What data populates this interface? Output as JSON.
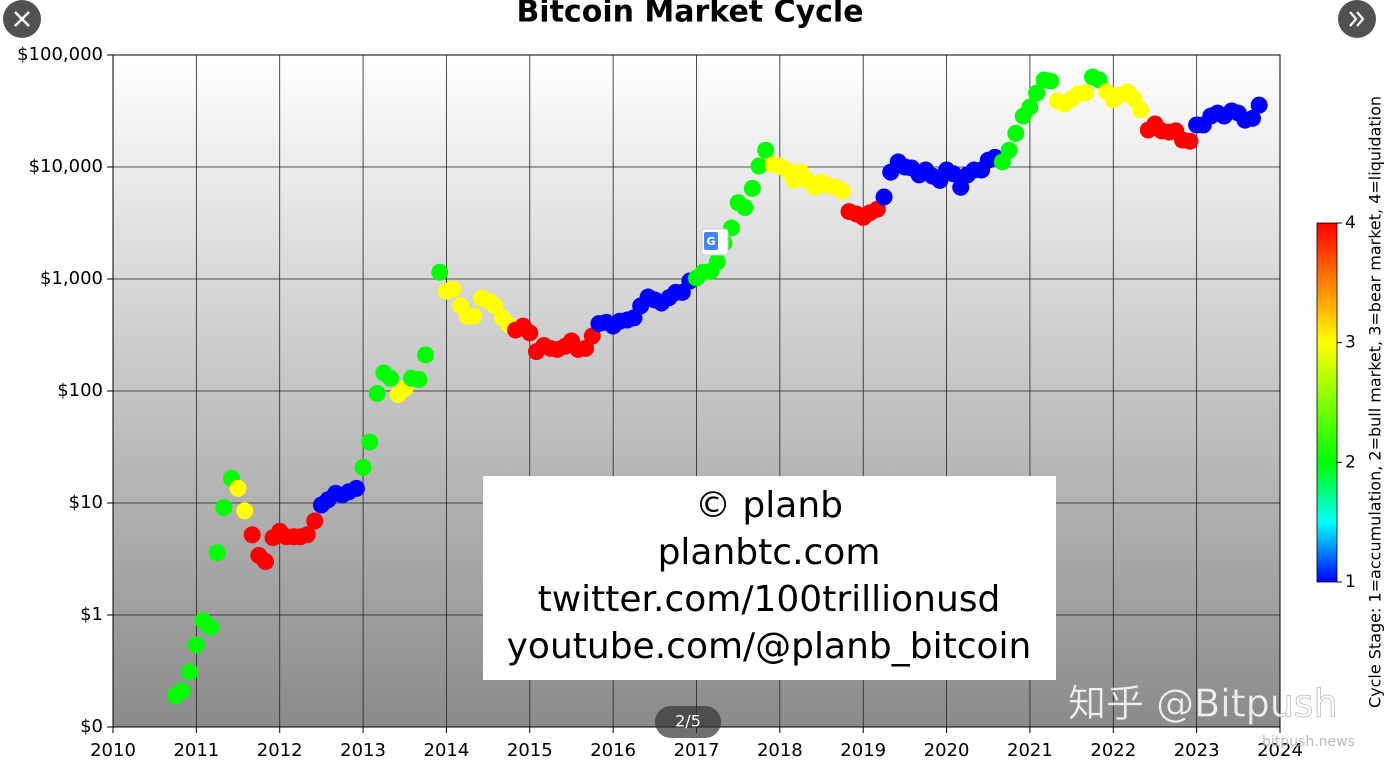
{
  "chart_data": {
    "type": "scatter",
    "title": "Bitcoin Market Cycle",
    "x": [
      2010.75,
      2010.83,
      2010.92,
      2011.0,
      2011.08,
      2011.17,
      2011.25,
      2011.33,
      2011.42,
      2011.5,
      2011.58,
      2011.67,
      2011.75,
      2011.83,
      2011.92,
      2012.0,
      2012.08,
      2012.17,
      2012.25,
      2012.33,
      2012.42,
      2012.5,
      2012.58,
      2012.67,
      2012.75,
      2012.83,
      2012.92,
      2013.0,
      2013.08,
      2013.17,
      2013.25,
      2013.33,
      2013.42,
      2013.5,
      2013.58,
      2013.67,
      2013.75,
      2013.92,
      2014.0,
      2014.08,
      2014.17,
      2014.25,
      2014.33,
      2014.42,
      2014.5,
      2014.58,
      2014.67,
      2014.75,
      2014.83,
      2014.92,
      2015.0,
      2015.08,
      2015.17,
      2015.25,
      2015.33,
      2015.42,
      2015.5,
      2015.58,
      2015.67,
      2015.75,
      2015.83,
      2015.92,
      2016.0,
      2016.08,
      2016.17,
      2016.25,
      2016.33,
      2016.42,
      2016.5,
      2016.58,
      2016.67,
      2016.75,
      2016.83,
      2016.92,
      2017.0,
      2017.08,
      2017.17,
      2017.25,
      2017.33,
      2017.42,
      2017.5,
      2017.58,
      2017.67,
      2017.75,
      2017.83,
      2017.92,
      2018.0,
      2018.08,
      2018.17,
      2018.25,
      2018.33,
      2018.42,
      2018.5,
      2018.58,
      2018.67,
      2018.75,
      2018.83,
      2018.92,
      2019.0,
      2019.08,
      2019.17,
      2019.25,
      2019.33,
      2019.42,
      2019.5,
      2019.58,
      2019.67,
      2019.75,
      2019.83,
      2019.92,
      2020.0,
      2020.08,
      2020.17,
      2020.25,
      2020.33,
      2020.42,
      2020.5,
      2020.58,
      2020.67,
      2020.75,
      2020.83,
      2020.92,
      2021.0,
      2021.08,
      2021.17,
      2021.25,
      2021.33,
      2021.42,
      2021.5,
      2021.58,
      2021.67,
      2021.75,
      2021.83,
      2021.92,
      2022.0,
      2022.08,
      2022.17,
      2022.25,
      2022.33,
      2022.42,
      2022.5,
      2022.58,
      2022.67,
      2022.75,
      2022.83,
      2022.92,
      2023.0,
      2023.08,
      2023.17,
      2023.25,
      2023.33,
      2023.42,
      2023.5,
      2023.58,
      2023.67,
      2023.75
    ],
    "values": [
      0.19,
      0.21,
      0.31,
      0.54,
      0.89,
      0.78,
      3.6,
      9.1,
      16.6,
      13.5,
      8.5,
      5.2,
      3.4,
      3.0,
      4.9,
      5.6,
      5.0,
      5.0,
      5.0,
      5.2,
      6.9,
      9.6,
      10.7,
      12.2,
      11.8,
      12.6,
      13.5,
      20.8,
      35,
      95,
      145,
      130,
      93,
      105,
      130,
      127,
      210,
      1150,
      780,
      810,
      575,
      465,
      465,
      675,
      640,
      580,
      450,
      390,
      350,
      380,
      330,
      225,
      255,
      240,
      235,
      250,
      280,
      235,
      240,
      310,
      400,
      410,
      380,
      420,
      430,
      450,
      575,
      690,
      650,
      610,
      680,
      760,
      760,
      960,
      1020,
      1150,
      1170,
      1420,
      2090,
      2850,
      4800,
      4350,
      6450,
      10200,
      14100,
      10500,
      10200,
      9400,
      7600,
      9000,
      7600,
      6600,
      7300,
      6800,
      6600,
      6100,
      4000,
      3800,
      3550,
      3900,
      4200,
      5400,
      9000,
      11100,
      10000,
      9800,
      8500,
      9400,
      8300,
      7600,
      9400,
      8700,
      6600,
      8500,
      9400,
      9400,
      11500,
      12200,
      11100,
      14100,
      19950,
      28500,
      34300,
      45700,
      59800,
      58500,
      38900,
      36500,
      40600,
      45100,
      46000,
      63600,
      59800,
      46800,
      39800,
      43900,
      46800,
      40600,
      32300,
      21400,
      24200,
      21000,
      20500,
      21000,
      17400,
      17000,
      23700,
      23700,
      28500,
      30300,
      28500,
      31600,
      30300,
      26200,
      27200,
      35700
    ],
    "stage": [
      2,
      2,
      2,
      2,
      2,
      2,
      2,
      2,
      2,
      3,
      3,
      4,
      4,
      4,
      4,
      4,
      4,
      4,
      4,
      4,
      4,
      1,
      1,
      1,
      1,
      1,
      1,
      2,
      2,
      2,
      2,
      2,
      3,
      3,
      2,
      2,
      2,
      2,
      3,
      3,
      3,
      3,
      3,
      3,
      3,
      3,
      3,
      3,
      4,
      4,
      4,
      4,
      4,
      4,
      4,
      4,
      4,
      4,
      4,
      4,
      1,
      1,
      1,
      1,
      1,
      1,
      1,
      1,
      1,
      1,
      1,
      1,
      1,
      1,
      2,
      2,
      2,
      2,
      2,
      2,
      2,
      2,
      2,
      2,
      2,
      3,
      3,
      3,
      3,
      3,
      3,
      3,
      3,
      3,
      3,
      3,
      4,
      4,
      4,
      4,
      4,
      1,
      1,
      1,
      1,
      1,
      1,
      1,
      1,
      1,
      1,
      1,
      1,
      1,
      1,
      1,
      1,
      1,
      2,
      2,
      2,
      2,
      2,
      2,
      2,
      2,
      3,
      3,
      3,
      3,
      3,
      2,
      2,
      3,
      3,
      3,
      3,
      3,
      3,
      4,
      4,
      4,
      4,
      4,
      4,
      4,
      1,
      1,
      1,
      1,
      1,
      1,
      1,
      1,
      1,
      1
    ],
    "xlim": [
      2010,
      2024
    ],
    "xticks": [
      2010,
      2011,
      2012,
      2013,
      2014,
      2015,
      2016,
      2017,
      2018,
      2019,
      2020,
      2021,
      2022,
      2023,
      2024
    ],
    "ylim": [
      0.1,
      100000
    ],
    "yscale": "log",
    "yticks": [
      {
        "value": 0.1,
        "label": "$0"
      },
      {
        "value": 1,
        "label": "$1"
      },
      {
        "value": 10,
        "label": "$10"
      },
      {
        "value": 100,
        "label": "$100"
      },
      {
        "value": 1000,
        "label": "$1,000"
      },
      {
        "value": 10000,
        "label": "$10,000"
      },
      {
        "value": 100000,
        "label": "$100,000"
      }
    ],
    "grid": true,
    "colorbar": {
      "label": "Cycle Stage: 1=accumulation, 2=bull market, 3=bear market, 4=liquidation",
      "lim": [
        1,
        4
      ],
      "ticks": [
        1,
        2,
        3,
        4
      ],
      "colormap": [
        "#0000ff",
        "#00ffff",
        "#00ff00",
        "#80ff00",
        "#ffff00",
        "#ff8000",
        "#ff0000"
      ]
    },
    "annotation": [
      "© planb",
      "planbtc.com",
      "twitter.com/100trillionusd",
      "youtube.com/@planb_bitcoin"
    ]
  },
  "viewer": {
    "pager": "2/5",
    "watermark": "知乎 @Bitpush",
    "watermark_site": "bitpush.news"
  }
}
